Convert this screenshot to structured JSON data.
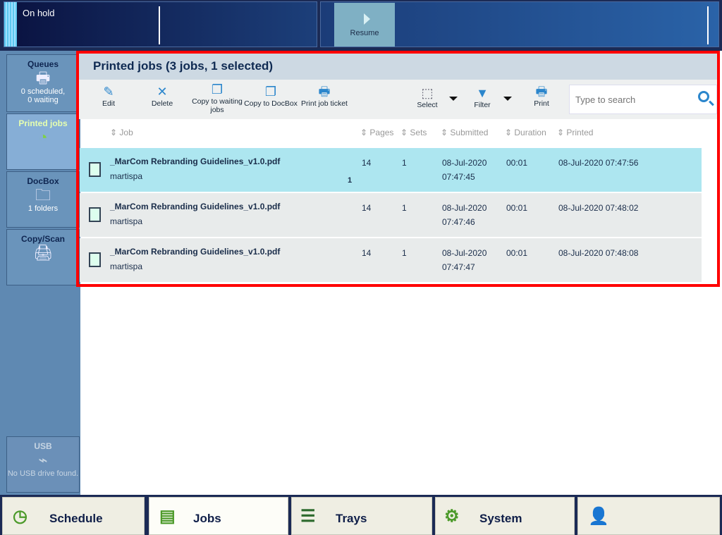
{
  "status": {
    "text": "On hold",
    "resume_label": "Resume"
  },
  "sidebar": {
    "items": [
      {
        "label": "Queues",
        "sub1": "0 scheduled,",
        "sub2": "0 waiting",
        "icon": "printer-icon"
      },
      {
        "label": "Printed jobs",
        "icon": "printed-jobs-icon"
      },
      {
        "label": "DocBox",
        "sub1": "1 folders",
        "icon": "folder-icon"
      },
      {
        "label": "Copy/Scan",
        "icon": "scanner-icon"
      },
      {
        "label": "USB",
        "sub1": "No USB drive found.",
        "icon": "usb-icon"
      }
    ]
  },
  "main": {
    "title": "Printed jobs (3 jobs, 1 selected)",
    "toolbar": {
      "edit": "Edit",
      "delete": "Delete",
      "copy_waiting": "Copy to waiting jobs",
      "copy_docbox": "Copy to DocBox",
      "ticket": "Print job ticket",
      "select": "Select",
      "filter": "Filter",
      "print": "Print"
    },
    "search": {
      "placeholder": "Type to search"
    },
    "columns": [
      "Job",
      "Pages",
      "Sets",
      "Submitted",
      "Duration",
      "Printed"
    ],
    "rows": [
      {
        "name": "_MarCom Rebranding Guidelines_v1.0.pdf",
        "user": "martispa",
        "pages": "14",
        "sets": "1",
        "sub_date": "08-Jul-2020",
        "sub_time": "07:47:45",
        "duration": "00:01",
        "printed": "08-Jul-2020 07:47:56",
        "badge": "1",
        "selected": true
      },
      {
        "name": "_MarCom Rebranding Guidelines_v1.0.pdf",
        "user": "martispa",
        "pages": "14",
        "sets": "1",
        "sub_date": "08-Jul-2020",
        "sub_time": "07:47:46",
        "duration": "00:01",
        "printed": "08-Jul-2020 07:48:02"
      },
      {
        "name": "_MarCom Rebranding Guidelines_v1.0.pdf",
        "user": "martispa",
        "pages": "14",
        "sets": "1",
        "sub_date": "08-Jul-2020",
        "sub_time": "07:47:47",
        "duration": "00:01",
        "printed": "08-Jul-2020 07:48:08"
      }
    ]
  },
  "tabs": [
    {
      "label": "Schedule"
    },
    {
      "label": "Jobs",
      "selected": true
    },
    {
      "label": "Trays"
    },
    {
      "label": "System"
    },
    {
      "label": ""
    }
  ],
  "colors": {
    "selected_row": "#ade6f0",
    "accent": "#2b86cc",
    "highlight_box": "#ff0000"
  }
}
